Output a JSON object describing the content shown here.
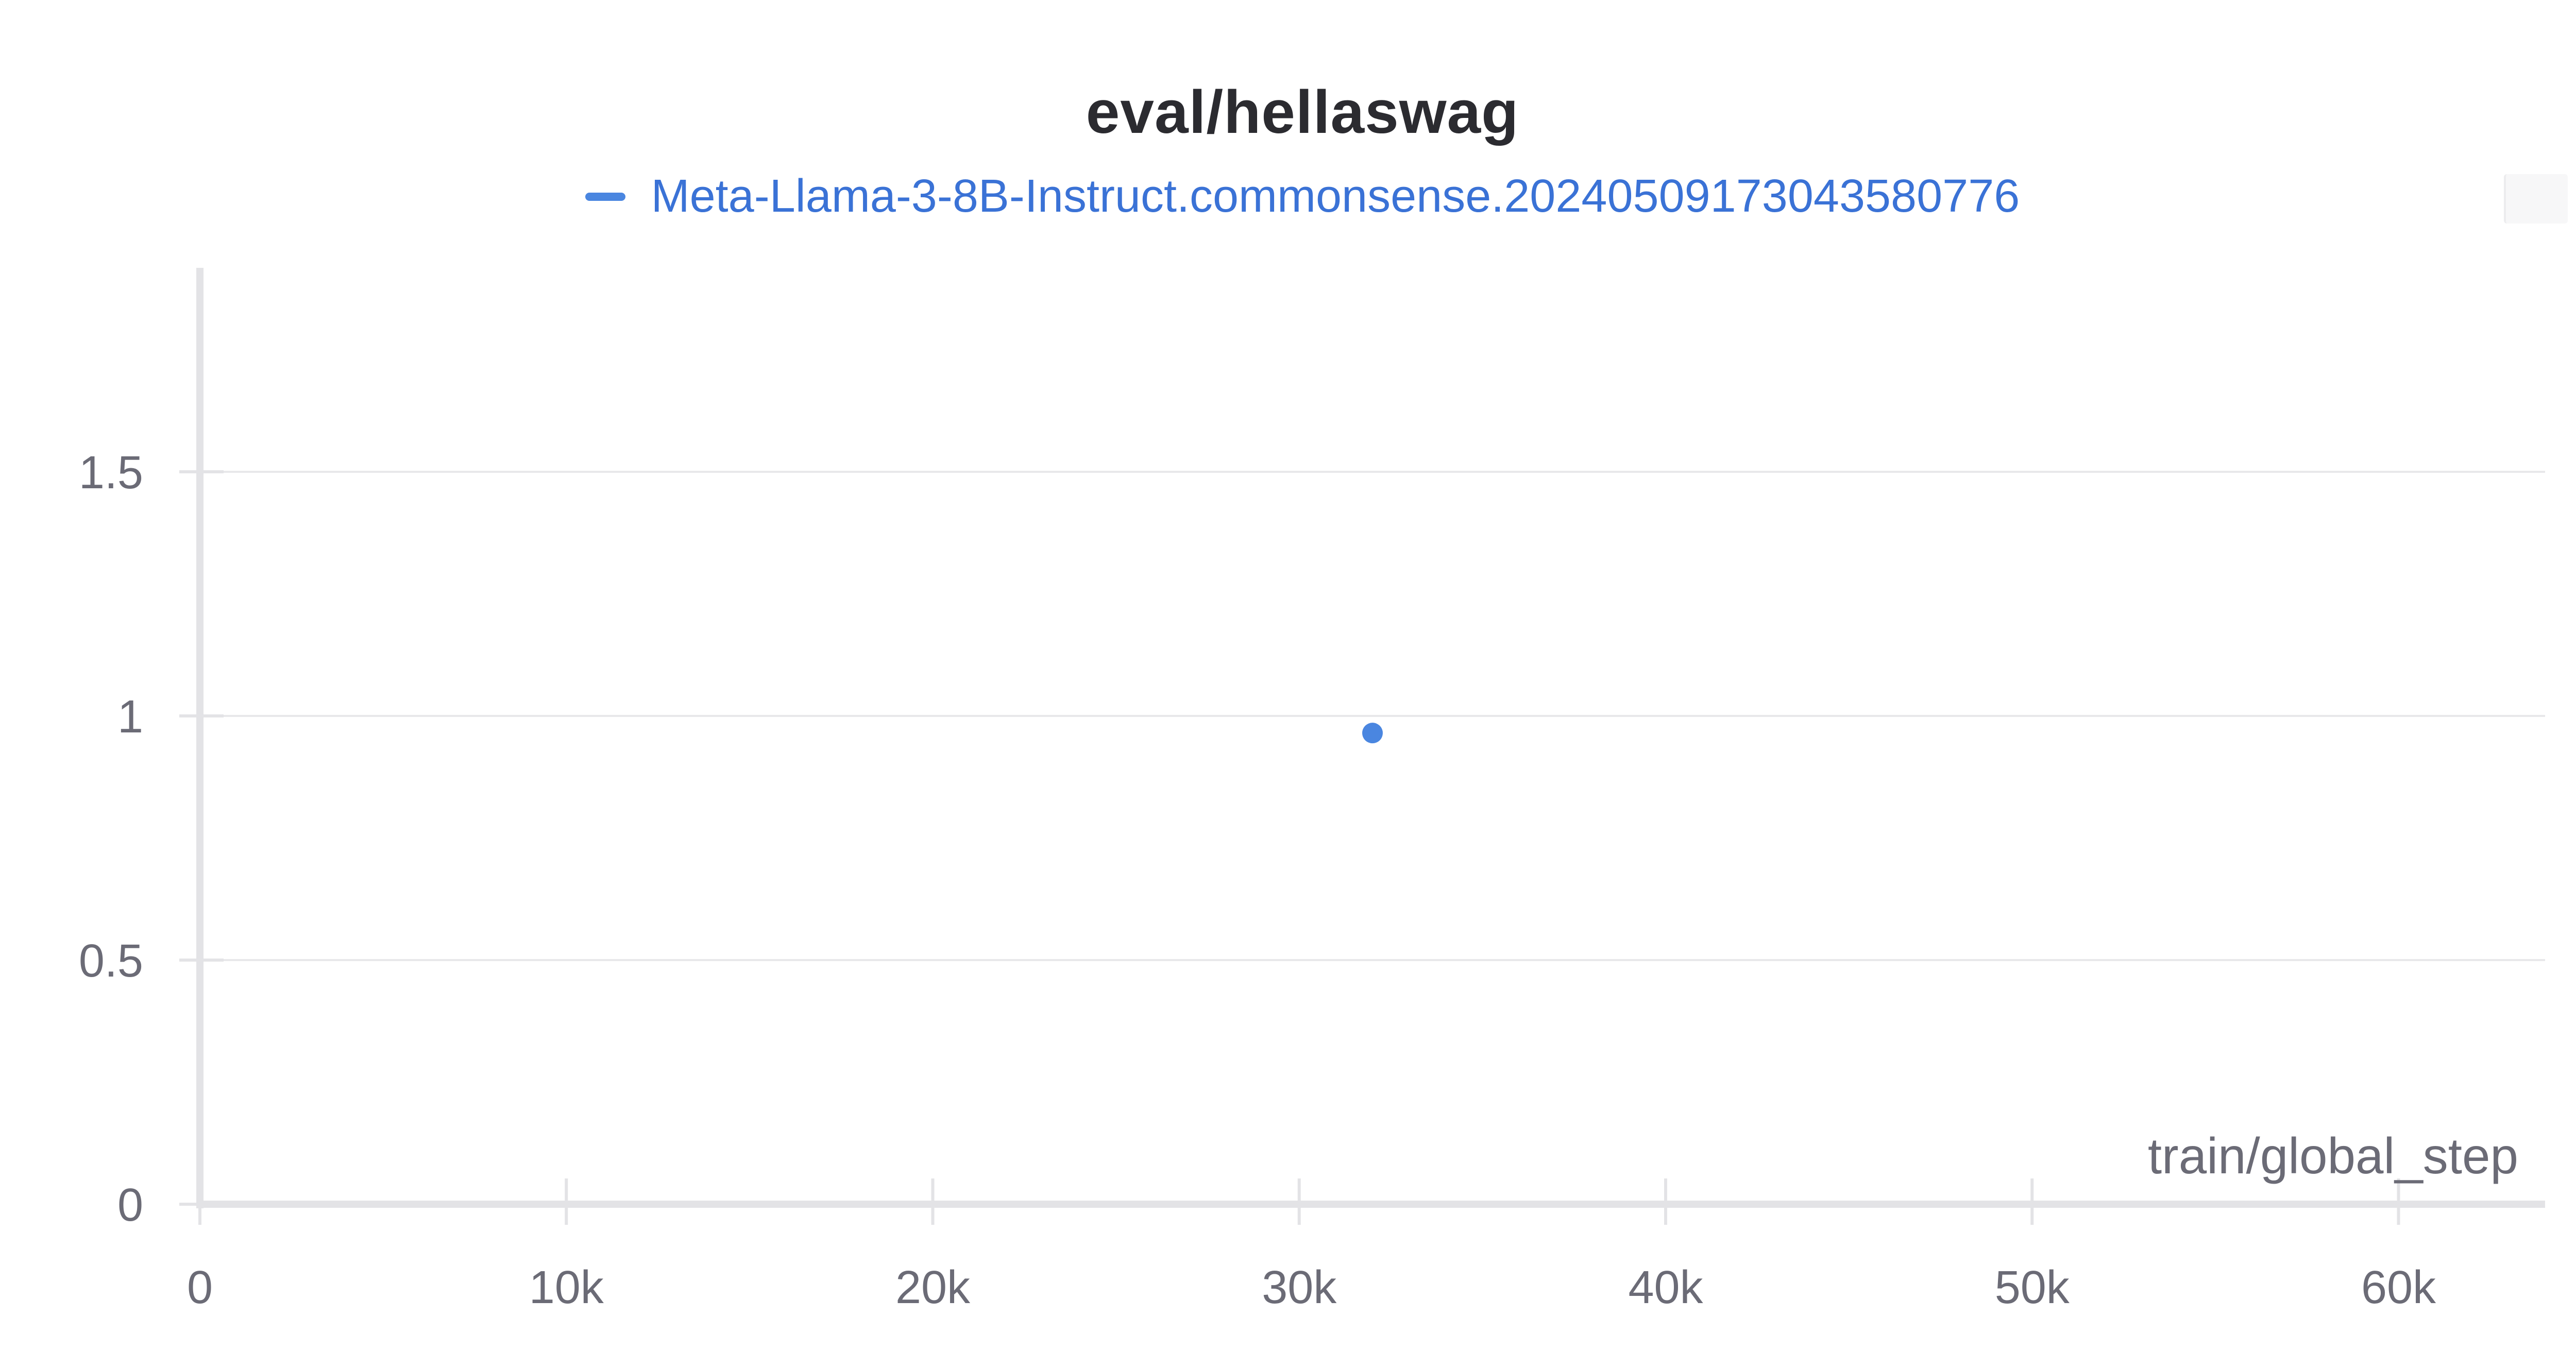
{
  "chart_data": {
    "type": "scatter",
    "title": "eval/hellaswag",
    "xlabel": "train/global_step",
    "ylabel": "",
    "xlim": [
      0,
      64000
    ],
    "ylim": [
      0,
      1.9
    ],
    "x_ticks": [
      {
        "value": 0,
        "label": "0"
      },
      {
        "value": 10000,
        "label": "10k"
      },
      {
        "value": 20000,
        "label": "20k"
      },
      {
        "value": 30000,
        "label": "30k"
      },
      {
        "value": 40000,
        "label": "40k"
      },
      {
        "value": 50000,
        "label": "50k"
      },
      {
        "value": 60000,
        "label": "60k"
      }
    ],
    "y_ticks": [
      {
        "value": 0,
        "label": "0"
      },
      {
        "value": 0.5,
        "label": "0.5"
      },
      {
        "value": 1,
        "label": "1"
      },
      {
        "value": 1.5,
        "label": "1.5"
      }
    ],
    "grid": true,
    "legend_position": "top-center",
    "series": [
      {
        "name": "Meta-Llama-3-8B-Instruct.commonsense.20240509173043580776",
        "color": "#4a86e0",
        "points": [
          {
            "x": 32000,
            "y": 0.965
          }
        ]
      }
    ]
  },
  "colors": {
    "axis": "#e3e3e6",
    "grid": "#e8e8ea",
    "tick_text": "#6b6b76",
    "title": "#2b2b30"
  }
}
